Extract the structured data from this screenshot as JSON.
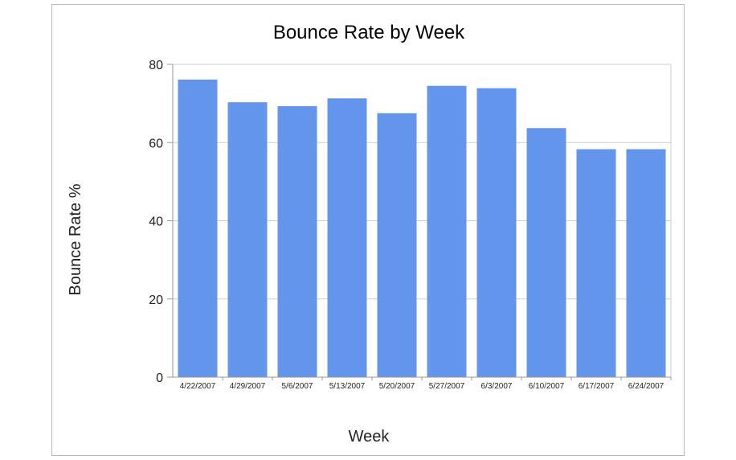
{
  "chart_data": {
    "type": "bar",
    "title": "Bounce Rate by Week",
    "xlabel": "Week",
    "ylabel": "Bounce Rate %",
    "categories": [
      "4/22/2007",
      "4/29/2007",
      "5/6/2007",
      "5/13/2007",
      "5/20/2007",
      "5/27/2007",
      "6/3/2007",
      "6/10/2007",
      "6/17/2007",
      "6/24/2007"
    ],
    "values": [
      76.1,
      70.3,
      69.3,
      71.3,
      67.5,
      74.5,
      73.9,
      63.7,
      58.3,
      58.3
    ],
    "ylim": [
      0,
      80
    ],
    "yticks": [
      0,
      20,
      40,
      60,
      80
    ],
    "grid": true,
    "legend": "none",
    "bar_color": "#6495ed"
  }
}
